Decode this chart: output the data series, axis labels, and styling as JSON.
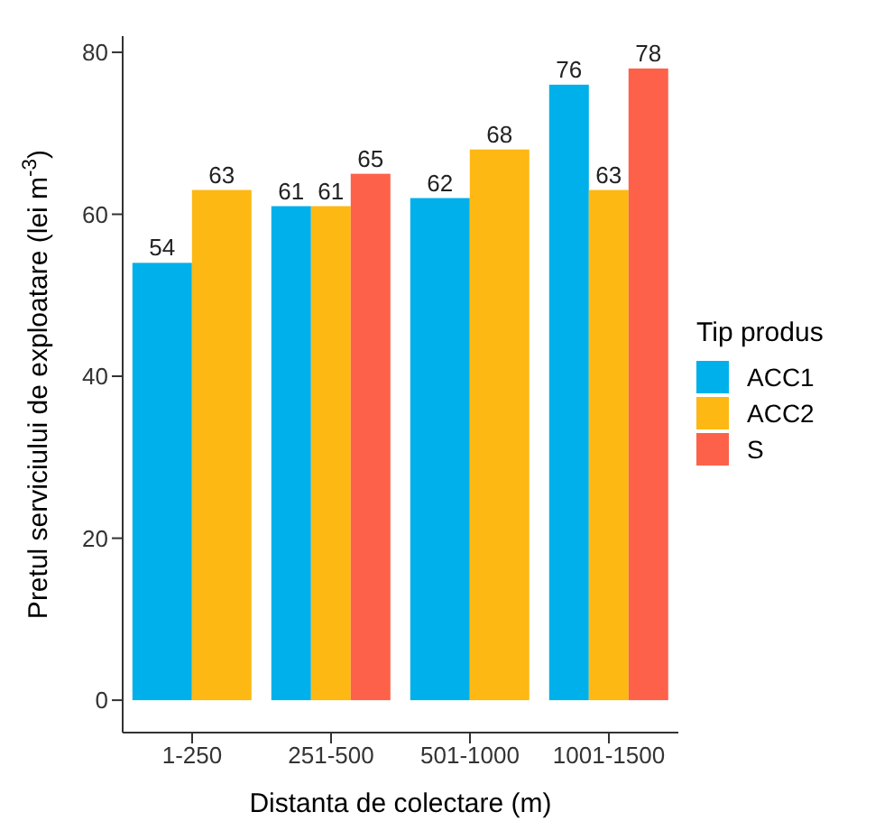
{
  "chart_data": {
    "type": "bar",
    "xlabel": "Distanta de colectare (m)",
    "ylabel": "Pretul serviciului de exploatare (lei m$^{-3}$)",
    "legend_title": "Tip produs",
    "categories": [
      "1-250",
      "251-500",
      "501-1000",
      "1001-1500"
    ],
    "series": [
      {
        "name": "ACC1",
        "color": "#00b0ea",
        "values": [
          54,
          61,
          62,
          76
        ]
      },
      {
        "name": "ACC2",
        "color": "#fdb813",
        "values": [
          63,
          61,
          68,
          63
        ]
      },
      {
        "name": "S",
        "color": "#fe6149",
        "values": [
          null,
          65,
          null,
          78
        ]
      }
    ],
    "ylim": [
      -4,
      82
    ],
    "yticks": [
      0,
      20,
      40,
      60,
      80
    ],
    "grid": false,
    "legend": "right",
    "data_labels": true
  }
}
